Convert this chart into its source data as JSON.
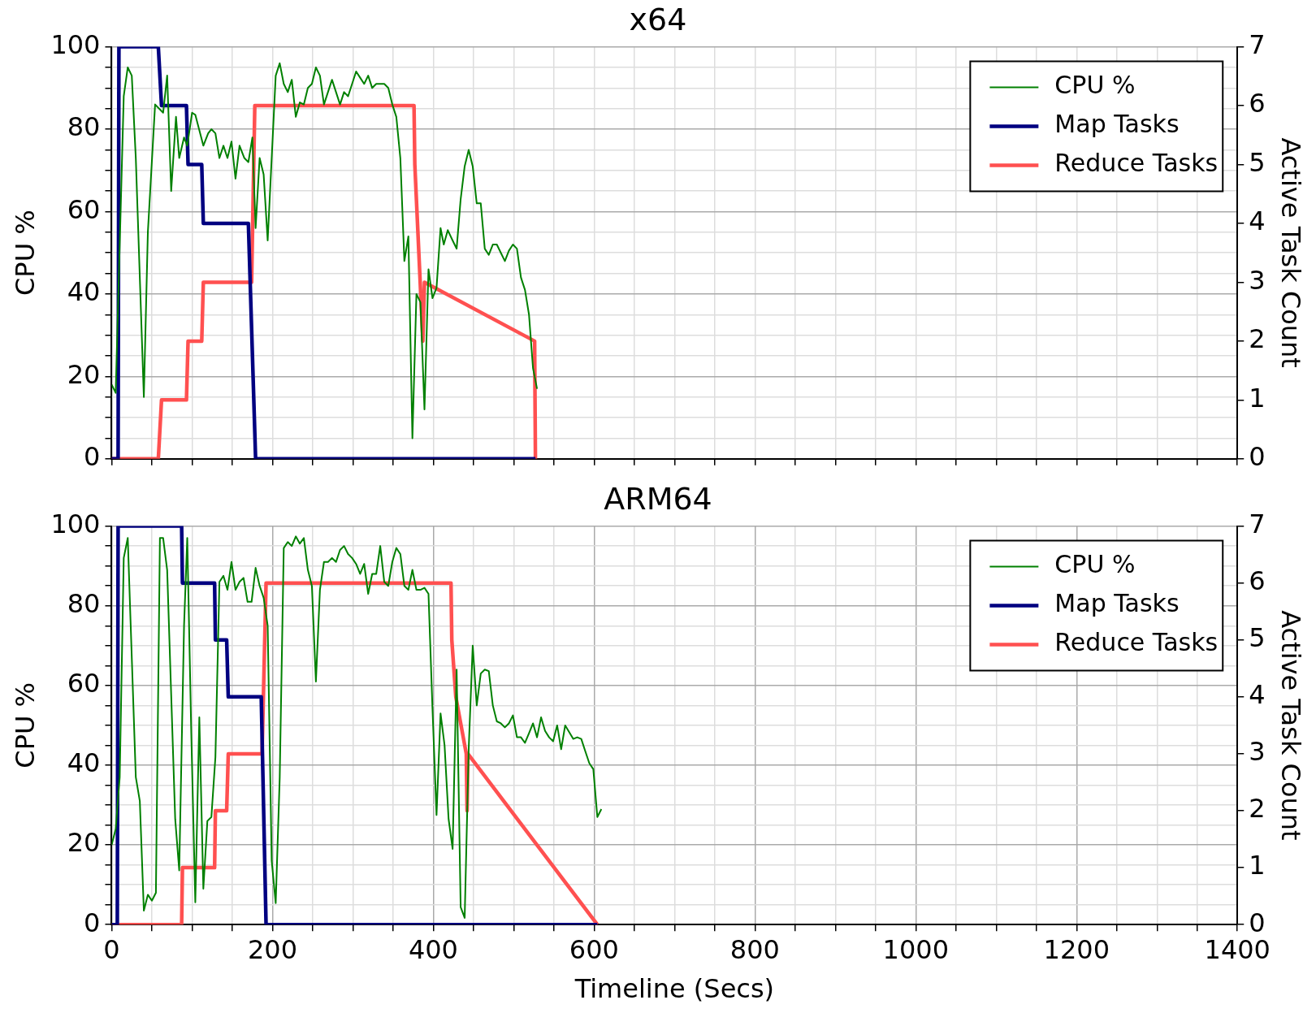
{
  "chart_data": [
    {
      "type": "line",
      "title": "x64",
      "ylabel": "CPU %",
      "y2label": "Active Task Count",
      "xlim": [
        0,
        1400
      ],
      "xticks": [
        0,
        {
          "value": 50,
          "label": null
        },
        {
          "value": 100,
          "label": null
        },
        {
          "value": 150,
          "label": null
        },
        {
          "value": 200,
          "label": null
        },
        {
          "value": 250,
          "label": null
        },
        {
          "value": 300,
          "label": null
        },
        {
          "value": 350,
          "label": null
        },
        {
          "value": 400,
          "label": null
        },
        {
          "value": 450,
          "label": null
        },
        {
          "value": 500,
          "label": null
        },
        {
          "value": 550,
          "label": null
        },
        {
          "value": 600,
          "label": null
        },
        {
          "value": 650,
          "label": null
        },
        {
          "value": 700,
          "label": null
        },
        {
          "value": 750,
          "label": null
        },
        {
          "value": 800,
          "label": null
        },
        {
          "value": 850,
          "label": null
        },
        {
          "value": 900,
          "label": null
        },
        {
          "value": 950,
          "label": null
        },
        {
          "value": 1000,
          "label": null
        },
        {
          "value": 1050,
          "label": null
        },
        {
          "value": 1100,
          "label": null
        },
        {
          "value": 1150,
          "label": null
        },
        {
          "value": 1200,
          "label": null
        },
        {
          "value": 1250,
          "label": null
        },
        {
          "value": 1300,
          "label": null
        },
        {
          "value": 1350,
          "label": null
        },
        {
          "value": 1400,
          "label": null
        }
      ],
      "ylim": [
        0,
        100
      ],
      "yticks": [
        0,
        {
          "value": 5,
          "label": null
        },
        {
          "value": 10,
          "label": null
        },
        {
          "value": 15,
          "label": null
        },
        20,
        {
          "value": 25,
          "label": null
        },
        {
          "value": 30,
          "label": null
        },
        {
          "value": 35,
          "label": null
        },
        40,
        {
          "value": 45,
          "label": null
        },
        {
          "value": 50,
          "label": null
        },
        {
          "value": 55,
          "label": null
        },
        60,
        {
          "value": 65,
          "label": null
        },
        {
          "value": 70,
          "label": null
        },
        {
          "value": 75,
          "label": null
        },
        80,
        {
          "value": 85,
          "label": null
        },
        {
          "value": 90,
          "label": null
        },
        {
          "value": 95,
          "label": null
        },
        100
      ],
      "y2lim": [
        0,
        7
      ],
      "y2ticks": [
        0,
        1,
        2,
        3,
        4,
        5,
        6,
        7
      ],
      "grid": true,
      "legend": "top right",
      "tick_labels": "y",
      "series": [
        {
          "name": "CPU %",
          "color": "#008000",
          "x": [
            0,
            5,
            15,
            20,
            25,
            30,
            40,
            45,
            54,
            64,
            69,
            74,
            80,
            84,
            90,
            94,
            100,
            104,
            114,
            120,
            124,
            129,
            134,
            139,
            144,
            149,
            154,
            159,
            165,
            170,
            175,
            179,
            184,
            189,
            194,
            204,
            209,
            214,
            219,
            224,
            229,
            234,
            239,
            244,
            249,
            254,
            259,
            264,
            274,
            284,
            289,
            294,
            304,
            309,
            314,
            319,
            324,
            329,
            334,
            339,
            344,
            349,
            354,
            359,
            364,
            369,
            374,
            379,
            384,
            389,
            394,
            399,
            404,
            409,
            413,
            418,
            424,
            429,
            434,
            439,
            444,
            449,
            454,
            459,
            464,
            469,
            474,
            479,
            484,
            489,
            494,
            499,
            504,
            509,
            514,
            519,
            524,
            529
          ],
          "values": [
            18,
            16,
            88,
            95,
            93,
            73,
            15,
            55,
            86,
            84,
            93,
            65,
            83,
            73,
            78,
            76,
            84,
            83.5,
            76,
            79,
            80,
            79,
            73,
            76,
            73,
            77,
            68,
            76,
            73,
            72,
            78,
            56,
            73,
            69,
            53,
            93,
            96,
            91,
            89,
            92,
            83,
            86.5,
            86,
            90,
            91,
            95,
            93,
            86,
            92,
            86,
            89,
            88,
            94,
            92.5,
            91,
            93,
            90,
            91,
            91,
            91,
            90,
            86,
            83,
            73,
            48,
            54,
            5,
            40,
            38,
            12,
            46,
            39,
            41.5,
            56,
            52,
            55.5,
            53,
            51,
            63,
            71,
            75,
            71,
            62,
            62,
            51,
            49.5,
            52,
            52,
            50,
            48,
            50.5,
            52,
            51,
            44,
            41,
            35,
            22,
            17
          ]
        },
        {
          "name": "Map Tasks",
          "color": "#000080",
          "axis": "y2",
          "x": [
            0,
            8,
            9,
            58,
            62,
            93,
            95,
            112,
            114,
            170,
            179,
            527
          ],
          "values": [
            0,
            0,
            7,
            7,
            6,
            6,
            5,
            5,
            4,
            4,
            0,
            0
          ]
        },
        {
          "name": "Reduce Tasks",
          "color": "#ff5050",
          "axis": "y2",
          "x": [
            0,
            58,
            62,
            93,
            95,
            112,
            114,
            174,
            178,
            376,
            377,
            387,
            389,
            526,
            527
          ],
          "values": [
            0,
            0,
            1,
            1,
            2,
            2,
            3,
            3,
            6,
            6,
            5,
            2,
            3,
            2,
            0
          ]
        }
      ]
    },
    {
      "type": "line",
      "title": "ARM64",
      "xlabel": "Timeline (Secs)",
      "ylabel": "CPU %",
      "y2label": "Active Task Count",
      "xlim": [
        0,
        1400
      ],
      "xticks": [
        0,
        {
          "value": 50,
          "label": null
        },
        {
          "value": 100,
          "label": null
        },
        {
          "value": 150,
          "label": null
        },
        200,
        {
          "value": 250,
          "label": null
        },
        {
          "value": 300,
          "label": null
        },
        {
          "value": 350,
          "label": null
        },
        400,
        {
          "value": 450,
          "label": null
        },
        {
          "value": 500,
          "label": null
        },
        {
          "value": 550,
          "label": null
        },
        600,
        {
          "value": 650,
          "label": null
        },
        {
          "value": 700,
          "label": null
        },
        {
          "value": 750,
          "label": null
        },
        800,
        {
          "value": 850,
          "label": null
        },
        {
          "value": 900,
          "label": null
        },
        {
          "value": 950,
          "label": null
        },
        1000,
        {
          "value": 1050,
          "label": null
        },
        {
          "value": 1100,
          "label": null
        },
        {
          "value": 1150,
          "label": null
        },
        1200,
        {
          "value": 1250,
          "label": null
        },
        {
          "value": 1300,
          "label": null
        },
        {
          "value": 1350,
          "label": null
        },
        1400
      ],
      "ylim": [
        0,
        100
      ],
      "yticks": [
        0,
        {
          "value": 5,
          "label": null
        },
        {
          "value": 10,
          "label": null
        },
        {
          "value": 15,
          "label": null
        },
        20,
        {
          "value": 25,
          "label": null
        },
        {
          "value": 30,
          "label": null
        },
        {
          "value": 35,
          "label": null
        },
        40,
        {
          "value": 45,
          "label": null
        },
        {
          "value": 50,
          "label": null
        },
        {
          "value": 55,
          "label": null
        },
        60,
        {
          "value": 65,
          "label": null
        },
        {
          "value": 70,
          "label": null
        },
        {
          "value": 75,
          "label": null
        },
        80,
        {
          "value": 85,
          "label": null
        },
        {
          "value": 90,
          "label": null
        },
        {
          "value": 95,
          "label": null
        },
        100
      ],
      "y2lim": [
        0,
        7
      ],
      "y2ticks": [
        0,
        1,
        2,
        3,
        4,
        5,
        6,
        7
      ],
      "grid": true,
      "legend": "top right",
      "series": [
        {
          "name": "CPU %",
          "color": "#008000",
          "x": [
            0,
            5,
            10,
            15,
            20,
            30,
            35,
            40,
            45,
            50,
            55,
            60,
            64,
            69,
            79,
            84,
            90,
            94,
            99,
            104,
            109,
            114,
            119,
            124,
            129,
            134,
            139,
            144,
            149,
            154,
            159,
            164,
            169,
            174,
            179,
            184,
            189,
            194,
            199,
            204,
            209,
            214,
            219,
            224,
            229,
            234,
            239,
            244,
            249,
            254,
            259,
            264,
            269,
            274,
            279,
            284,
            289,
            294,
            299,
            304,
            309,
            314,
            319,
            324,
            329,
            334,
            339,
            344,
            349,
            354,
            359,
            364,
            369,
            374,
            379,
            384,
            389,
            394,
            399,
            404,
            409,
            414,
            419,
            424,
            429,
            434,
            439,
            444,
            449,
            454,
            459,
            464,
            469,
            474,
            479,
            484,
            489,
            494,
            499,
            504,
            509,
            514,
            519,
            524,
            529,
            534,
            539,
            544,
            549,
            554,
            559,
            564,
            569,
            574,
            579,
            584,
            589,
            594,
            599,
            604,
            609
          ],
          "values": [
            20,
            24,
            37,
            92,
            97,
            37,
            31,
            3.5,
            7.5,
            6,
            8,
            97,
            97,
            89,
            26.5,
            13.6,
            75,
            97,
            48,
            5.6,
            52,
            9,
            26,
            27,
            42,
            86,
            87.5,
            84,
            91,
            84,
            86,
            87,
            81,
            81,
            89.5,
            85,
            82,
            75,
            16,
            5.4,
            37,
            94.5,
            96,
            95,
            97.4,
            95.6,
            97,
            89,
            85,
            61,
            84,
            91,
            91,
            92,
            91,
            94,
            95,
            93,
            92,
            90.5,
            88,
            90.5,
            83,
            88,
            88,
            95,
            86,
            85,
            91,
            94.5,
            93,
            85,
            84,
            89,
            84,
            84,
            84.5,
            83,
            54,
            27.5,
            53,
            45,
            26.5,
            19,
            64,
            4.4,
            1.7,
            44,
            70,
            55,
            63,
            64,
            63.6,
            55,
            51,
            50.5,
            49.5,
            50.5,
            52.5,
            47,
            47,
            45.6,
            48,
            50.5,
            47,
            52,
            48.6,
            47,
            46,
            50,
            44,
            50,
            48.3,
            46.6,
            47,
            46.6,
            43.5,
            40.5,
            39,
            27,
            29
          ]
        },
        {
          "name": "Map Tasks",
          "color": "#000080",
          "axis": "y2",
          "x": [
            0,
            7,
            8,
            87,
            88,
            128,
            129,
            143,
            145,
            186,
            192,
            604
          ],
          "values": [
            0,
            0,
            7,
            7,
            6,
            6,
            5,
            5,
            4,
            4,
            0,
            0
          ]
        },
        {
          "name": "Reduce Tasks",
          "color": "#ff5050",
          "axis": "y2",
          "x": [
            0,
            87,
            88,
            128,
            129,
            143,
            145,
            187,
            192,
            422,
            423,
            428,
            441,
            442,
            443,
            604
          ],
          "values": [
            0,
            0,
            1,
            1,
            2,
            2,
            3,
            3,
            6,
            6,
            5,
            4,
            3,
            2,
            3,
            0
          ]
        }
      ]
    }
  ]
}
